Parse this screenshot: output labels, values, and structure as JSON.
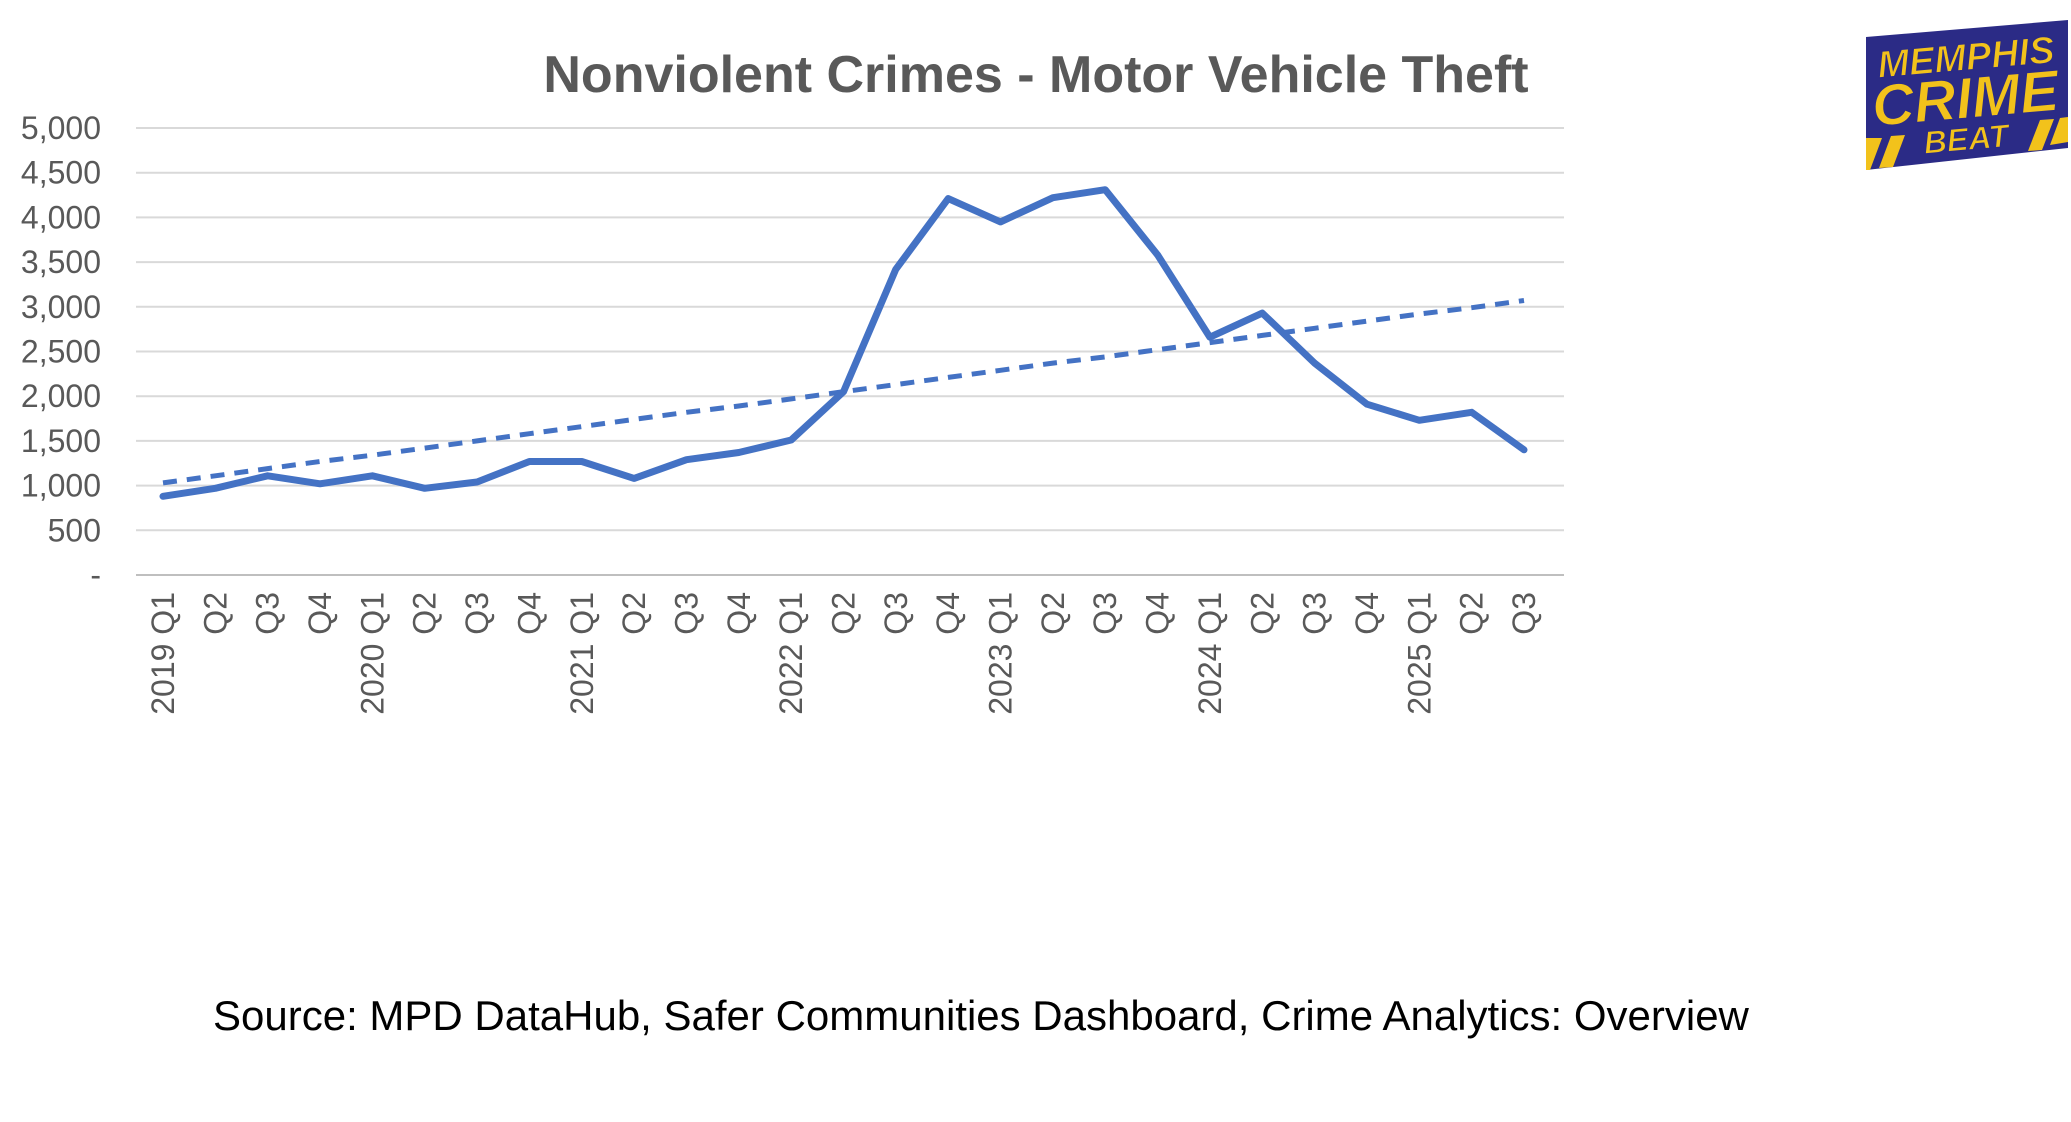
{
  "chart_data": {
    "type": "line",
    "title": "Nonviolent Crimes - Motor Vehicle Theft",
    "source": "Source: MPD DataHub, Safer Communities Dashboard,  Crime Analytics: Overview",
    "y_ticks": [
      "-",
      "500",
      "1,000",
      "1,500",
      "2,000",
      "2,500",
      "3,000",
      "3,500",
      "4,000",
      "4,500",
      "5,000"
    ],
    "ylim": [
      0,
      5000
    ],
    "ystep": 500,
    "grid": true,
    "legend": "none",
    "x_labels": [
      "2019 Q1",
      "Q2",
      "Q3",
      "Q4",
      "2020 Q1",
      "Q2",
      "Q3",
      "Q4",
      "2021 Q1",
      "Q2",
      "Q3",
      "Q4",
      "2022 Q1",
      "Q2",
      "Q3",
      "Q4",
      "2023 Q1",
      "Q2",
      "Q3",
      "Q4",
      "2024 Q1",
      "Q2",
      "Q3",
      "Q4",
      "2025 Q1",
      "Q2",
      "Q3"
    ],
    "series": [
      {
        "style": "solid",
        "color": "#4472C4",
        "values": [
          880,
          970,
          1110,
          1020,
          1110,
          970,
          1040,
          1270,
          1270,
          1080,
          1290,
          1370,
          1510,
          2050,
          3420,
          4210,
          3950,
          4220,
          4310,
          3580,
          2660,
          2930,
          2370,
          1910,
          1730,
          1820,
          1400
        ]
      },
      {
        "style": "dashed",
        "color": "#4472C4",
        "values": [
          1030,
          1110,
          1190,
          1270,
          1340,
          1420,
          1500,
          1580,
          1660,
          1740,
          1820,
          1890,
          1970,
          2050,
          2130,
          2210,
          2290,
          2370,
          2440,
          2520,
          2600,
          2680,
          2760,
          2840,
          2920,
          2990,
          3070
        ]
      }
    ]
  },
  "logo": {
    "line1": "MEMPHIS",
    "line2": "CRIME",
    "line3": "BEAT",
    "color_bg": "#2B2B86",
    "color_fg": "#F2C21B"
  }
}
